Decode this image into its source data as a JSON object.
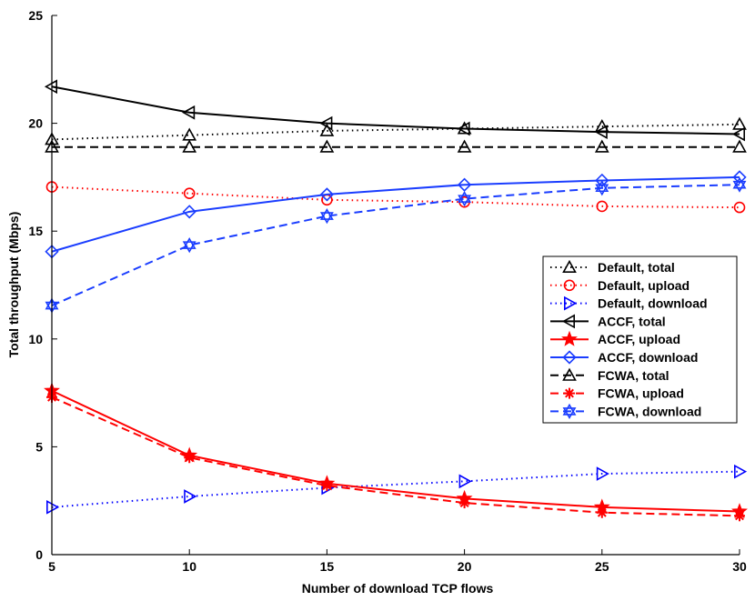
{
  "chart_data": {
    "type": "line",
    "title": "",
    "xlabel": "Number of download TCP flows",
    "ylabel": "Total throughput (Mbps)",
    "xlim": [
      5,
      30
    ],
    "ylim": [
      0,
      25
    ],
    "xticks": [
      5,
      10,
      15,
      20,
      25,
      30
    ],
    "yticks": [
      0,
      5,
      10,
      15,
      20,
      25
    ],
    "x": [
      5,
      10,
      15,
      20,
      25,
      30
    ],
    "legend_position": "center-right",
    "series": [
      {
        "name": "Default, total",
        "values": [
          19.25,
          19.45,
          19.65,
          19.75,
          19.85,
          19.95
        ],
        "color": "#000000",
        "dash": "dotted",
        "marker": "triangle-up"
      },
      {
        "name": "Default, upload",
        "values": [
          17.05,
          16.75,
          16.45,
          16.35,
          16.15,
          16.1
        ],
        "color": "#ff0000",
        "dash": "dotted",
        "marker": "circle"
      },
      {
        "name": "Default, download",
        "values": [
          2.2,
          2.7,
          3.1,
          3.4,
          3.75,
          3.85
        ],
        "color": "#0000ff",
        "dash": "dotted",
        "marker": "triangle-right"
      },
      {
        "name": "ACCF, total",
        "values": [
          21.7,
          20.5,
          20.0,
          19.75,
          19.6,
          19.5
        ],
        "color": "#000000",
        "dash": "solid",
        "marker": "triangle-left"
      },
      {
        "name": "ACCF, upload",
        "values": [
          7.6,
          4.6,
          3.3,
          2.6,
          2.2,
          2.0
        ],
        "color": "#ff0000",
        "dash": "solid",
        "marker": "star"
      },
      {
        "name": "ACCF, download",
        "values": [
          14.05,
          15.9,
          16.7,
          17.15,
          17.35,
          17.5
        ],
        "color": "#1a3dff",
        "dash": "solid",
        "marker": "diamond"
      },
      {
        "name": "FCWA, total",
        "values": [
          18.9,
          18.9,
          18.9,
          18.9,
          18.9,
          18.9
        ],
        "color": "#000000",
        "dash": "dashed",
        "marker": "triangle-up"
      },
      {
        "name": "FCWA, upload",
        "values": [
          7.3,
          4.5,
          3.2,
          2.4,
          1.95,
          1.8
        ],
        "color": "#ff0000",
        "dash": "dashed",
        "marker": "asterisk"
      },
      {
        "name": "FCWA, download",
        "values": [
          11.55,
          14.35,
          15.7,
          16.5,
          17.0,
          17.15
        ],
        "color": "#1a3dff",
        "dash": "dashed",
        "marker": "hexagram"
      }
    ]
  }
}
